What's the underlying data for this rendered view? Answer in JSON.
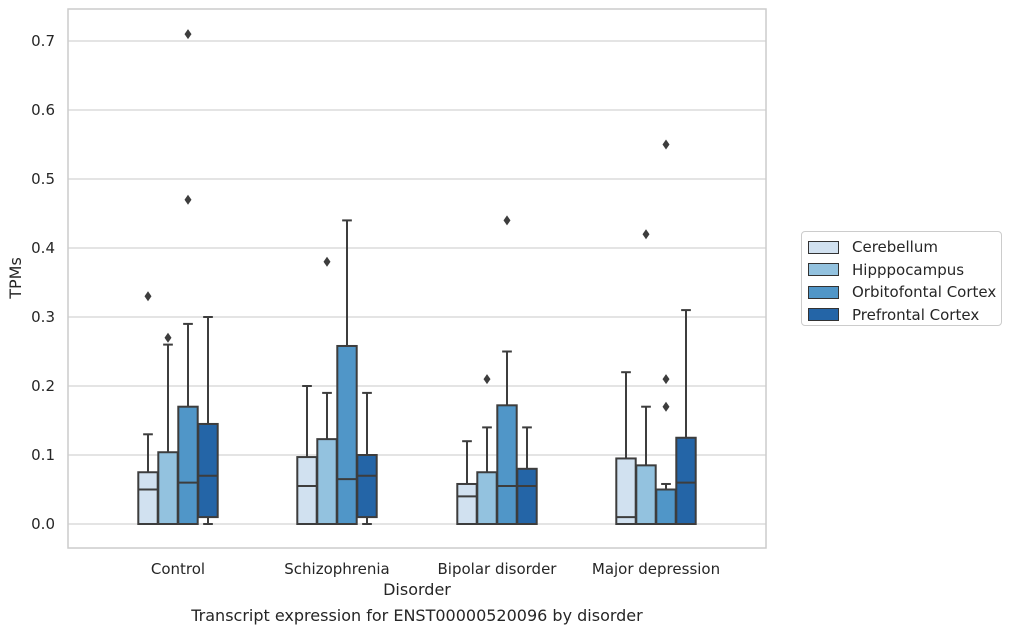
{
  "chart_data": {
    "type": "box",
    "xlabel": "Disorder",
    "ylabel": "TPMs",
    "caption": "Transcript expression for ENST00000520096 by disorder",
    "ylim": [
      -0.035,
      0.745
    ],
    "yticks": [
      "0.0",
      "0.1",
      "0.2",
      "0.3",
      "0.4",
      "0.5",
      "0.6",
      "0.7"
    ],
    "ytick_values": [
      0.0,
      0.1,
      0.2,
      0.3,
      0.4,
      0.5,
      0.6,
      0.7
    ],
    "grid": true,
    "legend_position": "outside-right",
    "categories": [
      "Control",
      "Schizophrenia",
      "Bipolar disorder",
      "Major depression"
    ],
    "series": [
      {
        "name": "Cerebellum",
        "color": "#d1e1f0",
        "boxes": [
          {
            "low": 0.0,
            "q1": 0.0,
            "median": 0.05,
            "q3": 0.075,
            "high": 0.13,
            "outliers": [
              0.33
            ]
          },
          {
            "low": 0.0,
            "q1": 0.0,
            "median": 0.055,
            "q3": 0.097,
            "high": 0.2,
            "outliers": []
          },
          {
            "low": 0.0,
            "q1": 0.0,
            "median": 0.04,
            "q3": 0.058,
            "high": 0.12,
            "outliers": []
          },
          {
            "low": 0.0,
            "q1": 0.0,
            "median": 0.01,
            "q3": 0.095,
            "high": 0.22,
            "outliers": []
          }
        ]
      },
      {
        "name": "Hipppocampus",
        "color": "#93c2df",
        "boxes": [
          {
            "low": 0.0,
            "q1": 0.0,
            "median": 0.0,
            "q3": 0.104,
            "high": 0.26,
            "outliers": [
              0.27
            ]
          },
          {
            "low": 0.0,
            "q1": 0.0,
            "median": 0.0,
            "q3": 0.123,
            "high": 0.19,
            "outliers": [
              0.38
            ]
          },
          {
            "low": 0.0,
            "q1": 0.0,
            "median": 0.0,
            "q3": 0.075,
            "high": 0.14,
            "outliers": [
              0.21
            ]
          },
          {
            "low": 0.0,
            "q1": 0.0,
            "median": 0.0,
            "q3": 0.085,
            "high": 0.17,
            "outliers": [
              0.42
            ]
          }
        ]
      },
      {
        "name": "Orbitofontal Cortex",
        "color": "#5096c8",
        "boxes": [
          {
            "low": 0.0,
            "q1": 0.0,
            "median": 0.06,
            "q3": 0.17,
            "high": 0.29,
            "outliers": [
              0.47,
              0.71
            ]
          },
          {
            "low": 0.0,
            "q1": 0.0,
            "median": 0.065,
            "q3": 0.258,
            "high": 0.44,
            "outliers": []
          },
          {
            "low": 0.0,
            "q1": 0.0,
            "median": 0.055,
            "q3": 0.172,
            "high": 0.25,
            "outliers": [
              0.44
            ]
          },
          {
            "low": 0.0,
            "q1": 0.0,
            "median": 0.0,
            "q3": 0.05,
            "high": 0.058,
            "outliers": [
              0.17,
              0.21,
              0.55
            ]
          }
        ]
      },
      {
        "name": "Prefrontal Cortex",
        "color": "#2465a7",
        "boxes": [
          {
            "low": 0.0,
            "q1": 0.01,
            "median": 0.07,
            "q3": 0.145,
            "high": 0.3,
            "outliers": []
          },
          {
            "low": 0.0,
            "q1": 0.01,
            "median": 0.07,
            "q3": 0.1,
            "high": 0.19,
            "outliers": []
          },
          {
            "low": 0.0,
            "q1": 0.0,
            "median": 0.055,
            "q3": 0.08,
            "high": 0.14,
            "outliers": []
          },
          {
            "low": 0.0,
            "q1": 0.0,
            "median": 0.06,
            "q3": 0.125,
            "high": 0.31,
            "outliers": []
          }
        ]
      }
    ]
  }
}
